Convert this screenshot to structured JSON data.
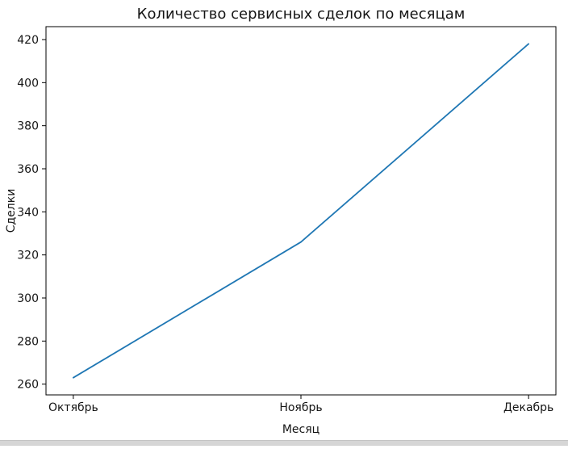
{
  "chart_data": {
    "type": "line",
    "title": "Количество сервисных сделок по месяцам",
    "xlabel": "Месяц",
    "ylabel": "Сделки",
    "categories": [
      "Октябрь",
      "Ноябрь",
      "Декабрь"
    ],
    "series": [
      {
        "name": "Сделки",
        "values": [
          263,
          326,
          418
        ]
      }
    ],
    "yticks": [
      260,
      280,
      300,
      320,
      340,
      360,
      380,
      400,
      420
    ],
    "ylim": [
      255,
      426
    ],
    "xlim_margin": 0.12,
    "grid": false,
    "legend": "none",
    "line_color": "#1f77b4",
    "axis_color": "#000000",
    "background": "#ffffff"
  }
}
